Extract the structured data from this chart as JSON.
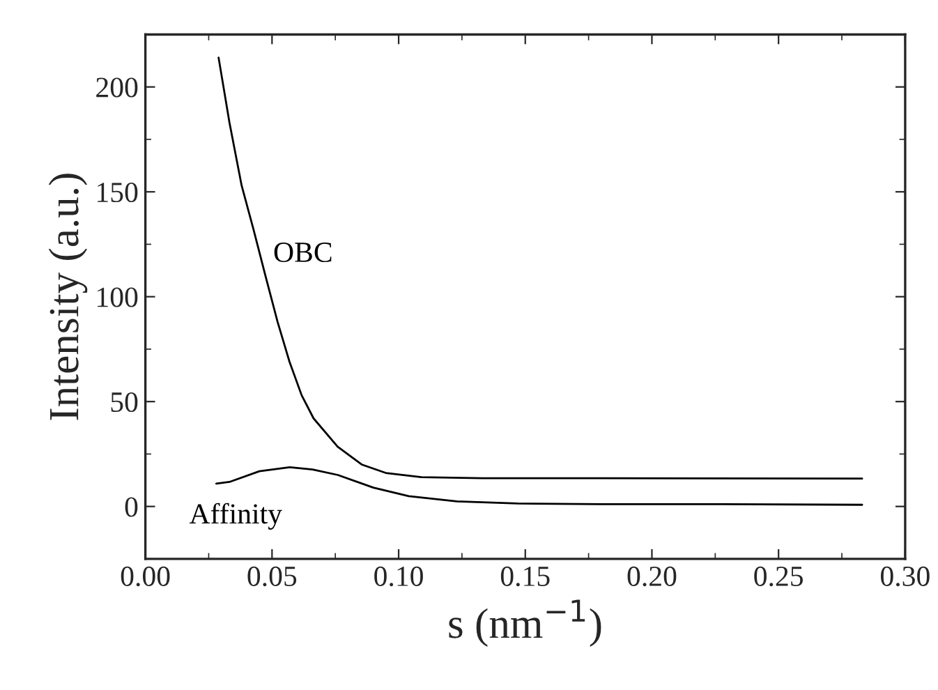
{
  "chart_data": {
    "type": "line",
    "xlabel": "s (nm$^{−1}$)",
    "ylabel": "Intensity (a.u.)",
    "xlim": [
      0,
      0.3
    ],
    "ylim": [
      -25,
      225
    ],
    "xticks": [
      {
        "value": 0,
        "label": "0.00"
      },
      {
        "value": 0.05,
        "label": "0.05"
      },
      {
        "value": 0.1,
        "label": "0.10"
      },
      {
        "value": 0.15,
        "label": "0.15"
      },
      {
        "value": 0.2,
        "label": "0.20"
      },
      {
        "value": 0.25,
        "label": "0.25"
      },
      {
        "value": 0.3,
        "label": "0.30"
      }
    ],
    "yticks": [
      0,
      50,
      100,
      150,
      200
    ],
    "grid": false,
    "legend": false,
    "series": [
      {
        "name": "OBC",
        "color": "#000000",
        "x": [
          0.0289,
          0.0332,
          0.038,
          0.0427,
          0.0474,
          0.0522,
          0.0569,
          0.0617,
          0.0664,
          0.0759,
          0.0854,
          0.0949,
          0.109,
          0.133,
          0.18,
          0.283
        ],
        "values": [
          214,
          183,
          153,
          132,
          110,
          88,
          69,
          53,
          42,
          28.5,
          20,
          16,
          14,
          13.5,
          13.5,
          13.3
        ]
      },
      {
        "name": "Affinity",
        "color": "#000000",
        "x": [
          0.028,
          0.0332,
          0.045,
          0.057,
          0.066,
          0.076,
          0.09,
          0.104,
          0.123,
          0.147,
          0.18,
          0.228,
          0.283
        ],
        "values": [
          10.9,
          11.7,
          16.8,
          18.7,
          17.6,
          15,
          9,
          4.9,
          2.4,
          1.4,
          1.1,
          1.1,
          0.8
        ]
      }
    ]
  }
}
